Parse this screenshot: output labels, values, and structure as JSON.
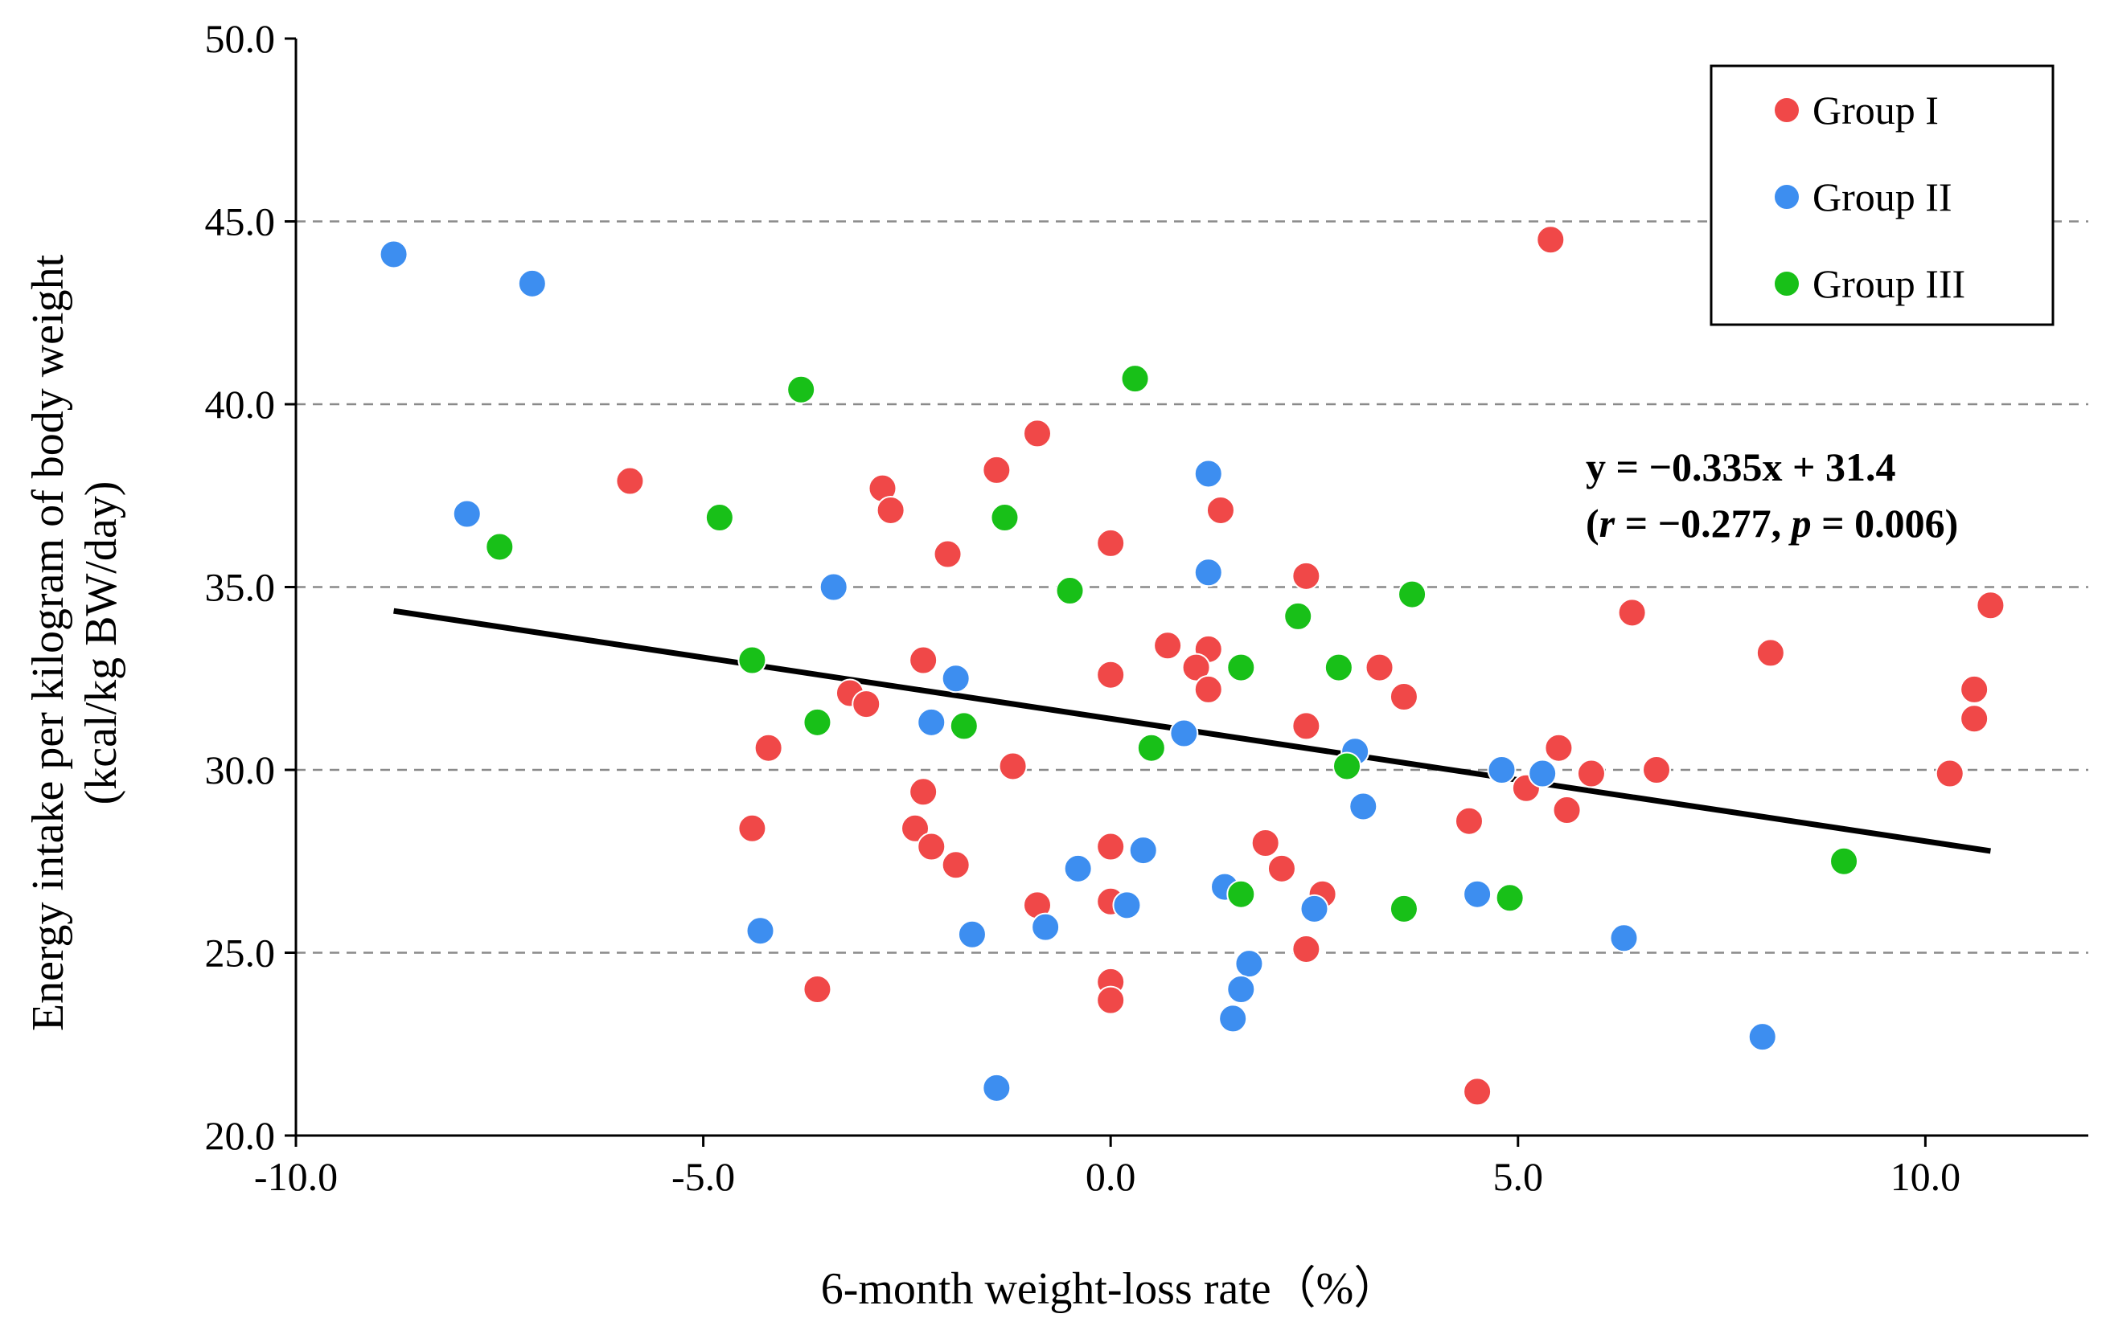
{
  "chart_data": {
    "type": "scatter",
    "xlabel": "6-month weight-loss rate（%）",
    "ylabel_lines": [
      "Energy intake per kilogram of body weight",
      "(kcal/kg BW/day)"
    ],
    "xlim": [
      -10,
      12
    ],
    "ylim": [
      20,
      50
    ],
    "x_ticks": [
      -10,
      -5,
      0,
      5,
      10
    ],
    "x_tick_labels": [
      "-10.0",
      "-5.0",
      "0.0",
      "5.0",
      "10.0"
    ],
    "y_ticks": [
      20,
      25,
      30,
      35,
      40,
      45,
      50
    ],
    "y_tick_labels": [
      "20.0",
      "25.0",
      "30.0",
      "35.0",
      "40.0",
      "45.0",
      "50.0"
    ],
    "grid": "horizontal dashed",
    "legend_position": "top-right",
    "series": [
      {
        "name": "Group I",
        "color": "#f04848",
        "points": [
          [
            -5.9,
            37.9
          ],
          [
            -2.8,
            37.7
          ],
          [
            -2.7,
            37.1
          ],
          [
            -1.4,
            38.2
          ],
          [
            -0.9,
            39.2
          ],
          [
            -2.0,
            35.9
          ],
          [
            0.0,
            36.2
          ],
          [
            1.35,
            37.1
          ],
          [
            2.4,
            35.3
          ],
          [
            0.7,
            33.4
          ],
          [
            1.2,
            33.3
          ],
          [
            1.05,
            32.8
          ],
          [
            1.2,
            32.2
          ],
          [
            3.3,
            32.8
          ],
          [
            3.6,
            32.0
          ],
          [
            2.4,
            31.2
          ],
          [
            -2.3,
            33.0
          ],
          [
            -3.2,
            32.1
          ],
          [
            -3.0,
            31.8
          ],
          [
            -4.2,
            30.6
          ],
          [
            -1.2,
            30.1
          ],
          [
            0.0,
            32.6
          ],
          [
            -4.4,
            28.4
          ],
          [
            -2.3,
            29.4
          ],
          [
            -2.4,
            28.4
          ],
          [
            -2.2,
            27.9
          ],
          [
            -1.9,
            27.4
          ],
          [
            0.0,
            27.9
          ],
          [
            1.9,
            28.0
          ],
          [
            2.1,
            27.3
          ],
          [
            -0.9,
            26.3
          ],
          [
            0.0,
            26.4
          ],
          [
            2.6,
            26.6
          ],
          [
            0.0,
            24.2
          ],
          [
            0.0,
            23.7
          ],
          [
            -3.6,
            24.0
          ],
          [
            2.4,
            25.1
          ],
          [
            4.4,
            28.6
          ],
          [
            5.1,
            29.5
          ],
          [
            5.6,
            28.9
          ],
          [
            5.5,
            30.6
          ],
          [
            5.9,
            29.9
          ],
          [
            6.7,
            30.0
          ],
          [
            6.4,
            34.3
          ],
          [
            8.1,
            33.2
          ],
          [
            5.4,
            44.5
          ],
          [
            10.8,
            34.5
          ],
          [
            10.6,
            32.2
          ],
          [
            10.6,
            31.4
          ],
          [
            10.3,
            29.9
          ],
          [
            4.5,
            21.2
          ]
        ]
      },
      {
        "name": "Group II",
        "color": "#3d8ef0",
        "points": [
          [
            -8.8,
            44.1
          ],
          [
            -7.1,
            43.3
          ],
          [
            -7.9,
            37.0
          ],
          [
            -3.4,
            35.0
          ],
          [
            1.2,
            38.1
          ],
          [
            1.2,
            35.4
          ],
          [
            -1.9,
            32.5
          ],
          [
            -2.2,
            31.3
          ],
          [
            0.9,
            31.0
          ],
          [
            3.0,
            30.5
          ],
          [
            3.1,
            29.0
          ],
          [
            4.8,
            30.0
          ],
          [
            5.3,
            29.9
          ],
          [
            0.4,
            27.8
          ],
          [
            -0.4,
            27.3
          ],
          [
            -4.3,
            25.6
          ],
          [
            -1.7,
            25.5
          ],
          [
            -0.8,
            25.7
          ],
          [
            0.2,
            26.3
          ],
          [
            1.4,
            26.8
          ],
          [
            2.5,
            26.2
          ],
          [
            4.5,
            26.6
          ],
          [
            6.3,
            25.4
          ],
          [
            1.7,
            24.7
          ],
          [
            1.6,
            24.0
          ],
          [
            1.5,
            23.2
          ],
          [
            -1.4,
            21.3
          ],
          [
            8.0,
            22.7
          ]
        ]
      },
      {
        "name": "Group III",
        "color": "#18c018",
        "points": [
          [
            -3.8,
            40.4
          ],
          [
            0.3,
            40.7
          ],
          [
            -4.8,
            36.9
          ],
          [
            -7.5,
            36.1
          ],
          [
            -1.3,
            36.9
          ],
          [
            -0.5,
            34.9
          ],
          [
            3.7,
            34.8
          ],
          [
            2.3,
            34.2
          ],
          [
            -4.4,
            33.0
          ],
          [
            1.6,
            32.8
          ],
          [
            2.8,
            32.8
          ],
          [
            -3.6,
            31.3
          ],
          [
            -1.8,
            31.2
          ],
          [
            0.5,
            30.6
          ],
          [
            2.9,
            30.1
          ],
          [
            1.6,
            26.6
          ],
          [
            3.6,
            26.2
          ],
          [
            4.9,
            26.5
          ],
          [
            9.0,
            27.5
          ]
        ]
      }
    ],
    "regression": {
      "x_range": [
        -8.8,
        10.8
      ],
      "slope": -0.335,
      "intercept": 31.4,
      "equation_label": "y = −0.335x + 31.4",
      "stats_r": "−0.277",
      "stats_p": "0.006",
      "stats_r_symbol": "r",
      "stats_p_symbol": "p"
    }
  }
}
